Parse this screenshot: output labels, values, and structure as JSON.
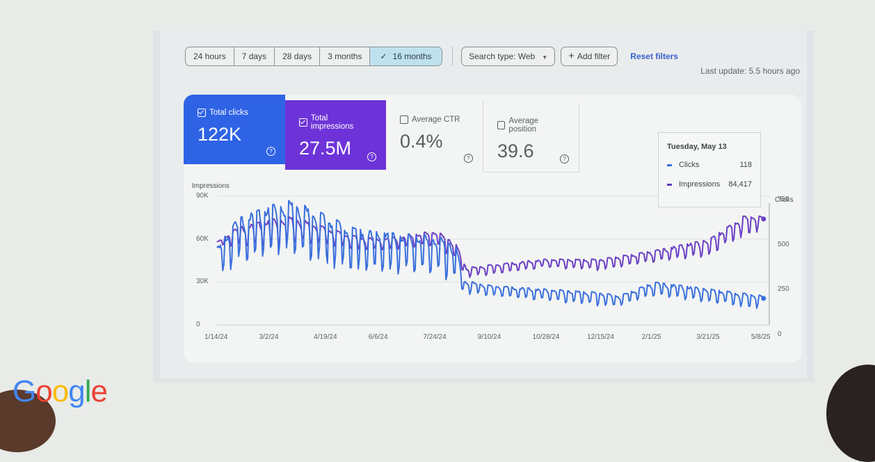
{
  "filters": {
    "date_ranges": [
      {
        "label": "24 hours",
        "active": false
      },
      {
        "label": "7 days",
        "active": false
      },
      {
        "label": "28 days",
        "active": false
      },
      {
        "label": "3 months",
        "active": false
      },
      {
        "label": "16 months",
        "active": true,
        "icon": "check-icon"
      }
    ],
    "check_glyph": "✓",
    "search_type_label": "Search type: Web",
    "search_type_caret": "▼",
    "add_filter_label": "Add filter",
    "add_filter_icon": "+",
    "reset_filters_label": "Reset filters",
    "last_update": "Last update: 5.5 hours ago"
  },
  "metrics": [
    {
      "label": "Total clicks",
      "value": "122K",
      "checked": true,
      "color": "#2f63e6"
    },
    {
      "label": "Total impressions",
      "value": "27.5M",
      "checked": true,
      "color": "#6d33d8"
    },
    {
      "label": "Average CTR",
      "value": "0.4%",
      "checked": false
    },
    {
      "label": "Average position",
      "value": "39.6",
      "checked": false
    }
  ],
  "help_glyph": "?",
  "tooltip": {
    "date": "Tuesday, May 13",
    "rows": [
      {
        "label": "Clicks",
        "value": "118",
        "color": "#3a6fdc"
      },
      {
        "label": "Impressions",
        "value": "84,417",
        "color": "#5b3bb8"
      }
    ]
  },
  "branding": {
    "logo_text": "Google",
    "logo_colors": [
      "#4285f4",
      "#ea4335",
      "#fbbc05",
      "#4285f4",
      "#34a853",
      "#ea4335"
    ]
  },
  "chart_data": {
    "type": "line",
    "title": "",
    "left_axis": {
      "label": "Impressions",
      "ticks": [
        "0",
        "30K",
        "60K",
        "90K"
      ],
      "range": [
        0,
        90000
      ]
    },
    "right_axis": {
      "label": "Clicks",
      "ticks": [
        "0",
        "250",
        "500",
        "750"
      ],
      "range": [
        0,
        750
      ]
    },
    "x_ticks": [
      "1/14/24",
      "3/2/24",
      "4/19/24",
      "6/6/24",
      "7/24/24",
      "9/10/24",
      "10/28/24",
      "12/15/24",
      "2/1/25",
      "3/21/25",
      "5/8/25"
    ],
    "grid": true,
    "legend": "none",
    "colors": {
      "clicks": "#3a6fdc",
      "impressions": "#6a3fc4"
    },
    "series": [
      {
        "name": "Clicks",
        "axis": "right",
        "weekly_pattern": true,
        "anchors": [
          {
            "x": "1/14/24",
            "low": 250,
            "high": 450
          },
          {
            "x": "2/1/24",
            "low": 360,
            "high": 620
          },
          {
            "x": "3/2/24",
            "low": 400,
            "high": 700
          },
          {
            "x": "3/20/24",
            "low": 420,
            "high": 730
          },
          {
            "x": "4/19/24",
            "low": 340,
            "high": 640
          },
          {
            "x": "5/15/24",
            "low": 300,
            "high": 560
          },
          {
            "x": "6/6/24",
            "low": 300,
            "high": 540
          },
          {
            "x": "7/24/24",
            "low": 290,
            "high": 520
          },
          {
            "x": "8/10/24",
            "low": 240,
            "high": 480
          },
          {
            "x": "8/18/24",
            "low": 180,
            "high": 260
          },
          {
            "x": "9/10/24",
            "low": 170,
            "high": 230
          },
          {
            "x": "10/28/24",
            "low": 140,
            "high": 210
          },
          {
            "x": "12/15/24",
            "low": 110,
            "high": 190
          },
          {
            "x": "1/1/25",
            "low": 110,
            "high": 170
          },
          {
            "x": "2/1/25",
            "low": 170,
            "high": 250
          },
          {
            "x": "3/21/25",
            "low": 130,
            "high": 210
          },
          {
            "x": "5/8/25",
            "low": 90,
            "high": 170
          }
        ],
        "last_value": 118
      },
      {
        "name": "Impressions",
        "axis": "left",
        "weekly_pattern": true,
        "anchors": [
          {
            "x": "1/14/24",
            "low": 55000,
            "high": 58000
          },
          {
            "x": "2/1/24",
            "low": 55000,
            "high": 68000
          },
          {
            "x": "3/2/24",
            "low": 55000,
            "high": 74000
          },
          {
            "x": "3/20/24",
            "low": 58000,
            "high": 76000
          },
          {
            "x": "4/19/24",
            "low": 56000,
            "high": 68000
          },
          {
            "x": "5/15/24",
            "low": 52000,
            "high": 62000
          },
          {
            "x": "6/6/24",
            "low": 52000,
            "high": 60000
          },
          {
            "x": "7/24/24",
            "low": 55000,
            "high": 66000
          },
          {
            "x": "8/10/24",
            "low": 45000,
            "high": 58000
          },
          {
            "x": "8/20/24",
            "low": 33000,
            "high": 40000
          },
          {
            "x": "9/10/24",
            "low": 35000,
            "high": 42000
          },
          {
            "x": "10/28/24",
            "low": 40000,
            "high": 46000
          },
          {
            "x": "12/15/24",
            "low": 38000,
            "high": 46000
          },
          {
            "x": "2/1/25",
            "low": 44000,
            "high": 52000
          },
          {
            "x": "3/21/25",
            "low": 48000,
            "high": 60000
          },
          {
            "x": "4/20/25",
            "low": 62000,
            "high": 76000
          },
          {
            "x": "5/8/25",
            "low": 66000,
            "high": 76000
          }
        ],
        "last_value": 84417
      }
    ]
  }
}
